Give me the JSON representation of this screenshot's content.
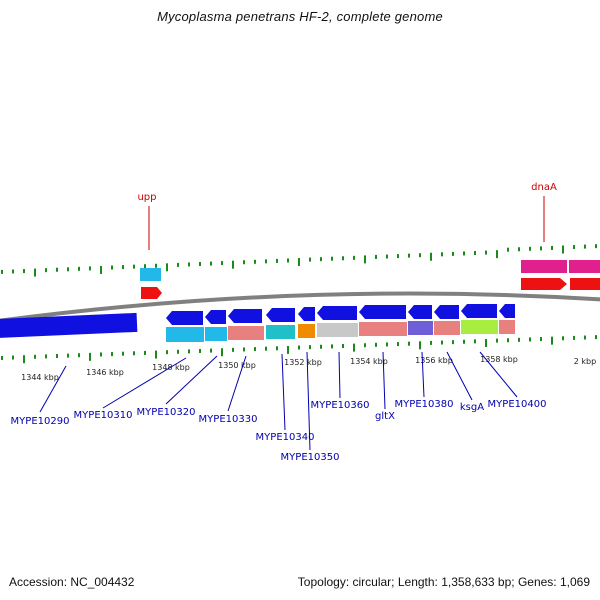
{
  "title": "Mycoplasma penetrans HF-2, complete genome",
  "footer": {
    "accession": "Accession: NC_004432",
    "summary": "Topology: circular; Length: 1,358,633 bp; Genes: 1,069"
  },
  "colors": {
    "backbone": "#808080",
    "gene_arrow": "#1010e0",
    "tick": "#1a8a1a",
    "top_label": "#cc0000",
    "bottom_label": "#0000b0"
  },
  "scale_labels": [
    "1344 kbp",
    "1346 kbp",
    "1348 kbp",
    "1350 kbp",
    "1352 kbp",
    "1354 kbp",
    "1356 kbp",
    "1358 kbp",
    "2 kbp"
  ],
  "top_gene_labels": [
    "upp",
    "dnaA"
  ],
  "bottom_gene_labels": [
    "MYPE10290",
    "MYPE10310",
    "MYPE10320",
    "MYPE10330",
    "MYPE10340",
    "MYPE10350",
    "MYPE10360",
    "gltX",
    "MYPE10380",
    "ksgA",
    "MYPE10400"
  ]
}
